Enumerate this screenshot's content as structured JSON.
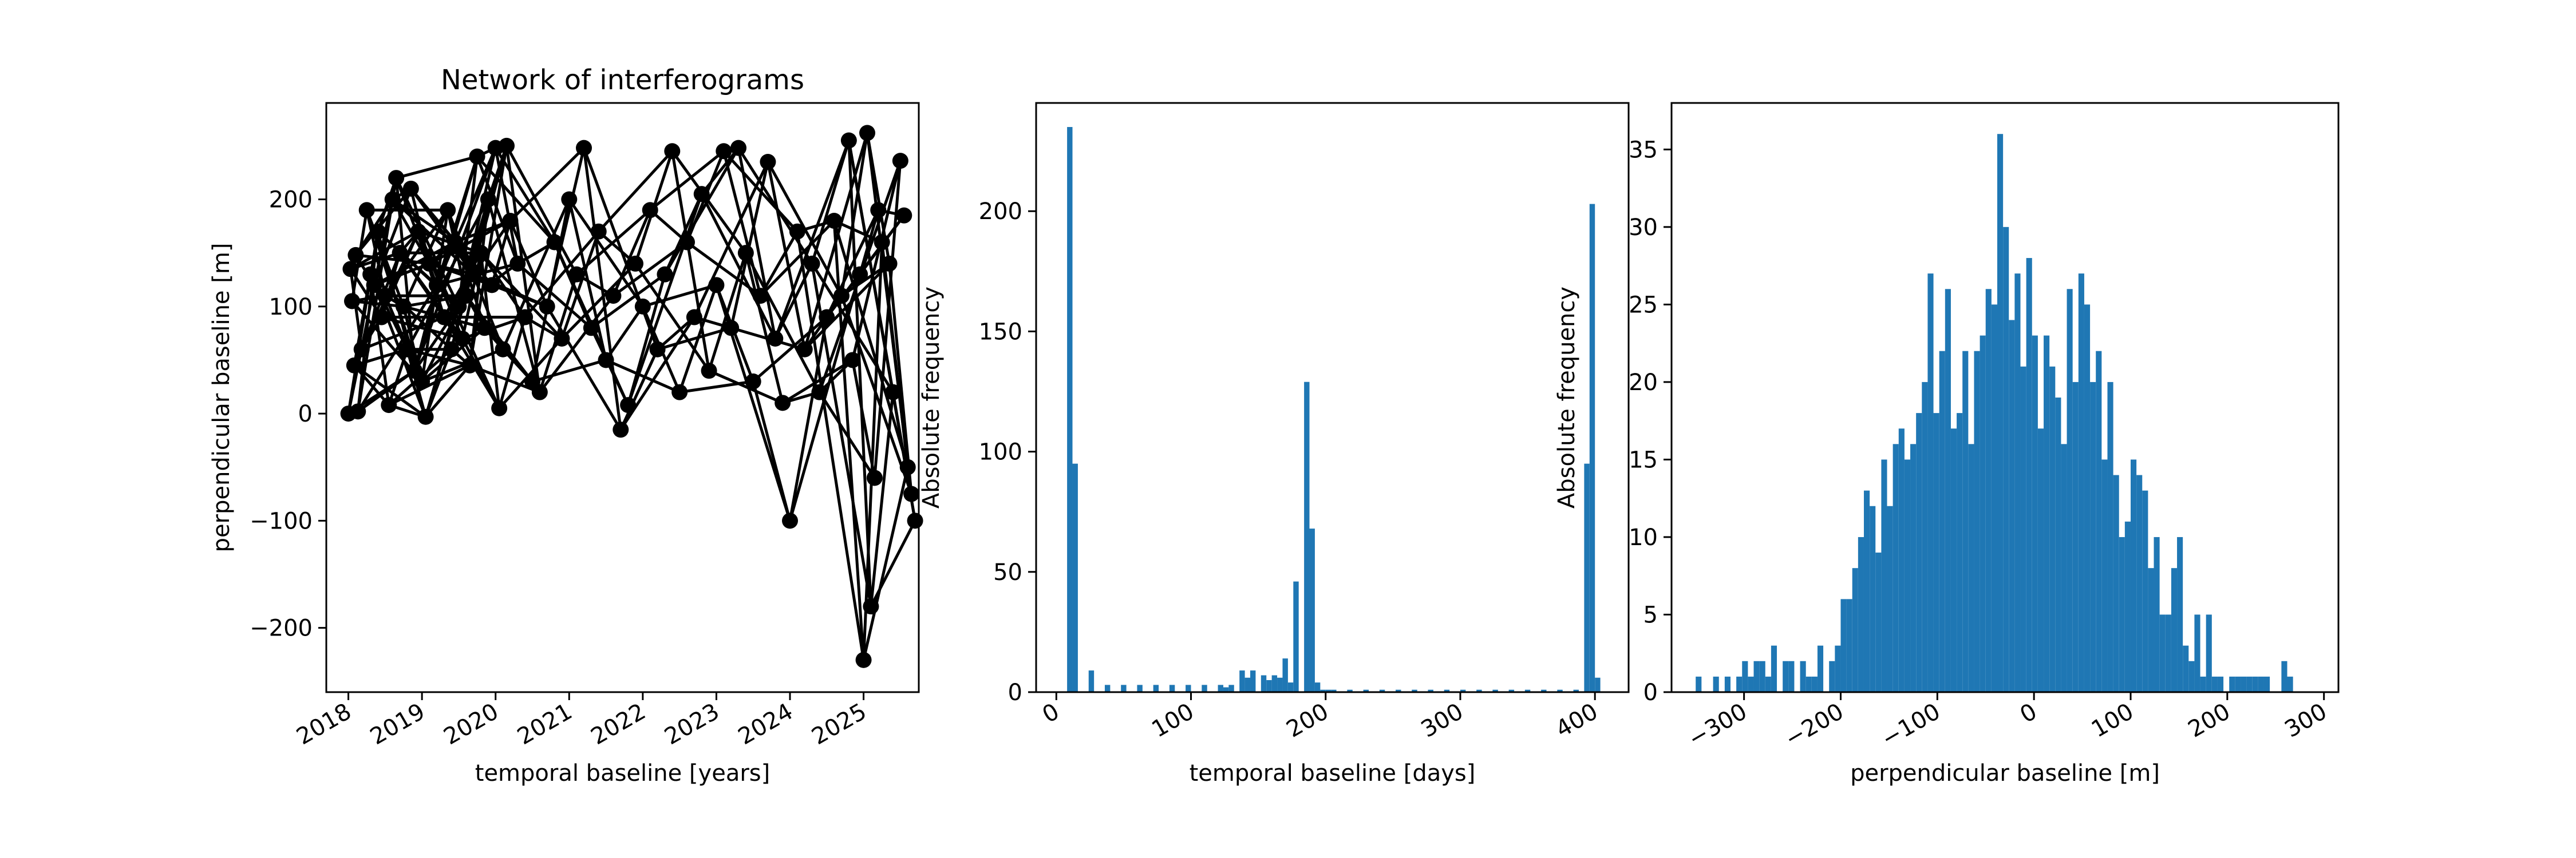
{
  "chart_data": [
    {
      "type": "scatter",
      "title": "Network of interferograms",
      "xlabel": "temporal baseline [years]",
      "ylabel": "perpendicular baseline [m]",
      "xlim": [
        2017.7,
        2025.75
      ],
      "ylim": [
        -260,
        290
      ],
      "x_ticks": [
        2018,
        2019,
        2020,
        2021,
        2022,
        2023,
        2024,
        2025
      ],
      "x_tick_labels": [
        "2018",
        "2019",
        "2020",
        "2021",
        "2022",
        "2023",
        "2024",
        "2025"
      ],
      "y_ticks": [
        -200,
        -100,
        0,
        100,
        200
      ],
      "y_tick_labels": [
        "−200",
        "−100",
        "0",
        "100",
        "200"
      ],
      "grid": false,
      "color": "#000000",
      "points": [
        [
          2018.0,
          0
        ],
        [
          2018.03,
          135
        ],
        [
          2018.05,
          105
        ],
        [
          2018.08,
          45
        ],
        [
          2018.1,
          148
        ],
        [
          2018.13,
          2
        ],
        [
          2018.18,
          60
        ],
        [
          2018.25,
          190
        ],
        [
          2018.3,
          130
        ],
        [
          2018.35,
          120
        ],
        [
          2018.4,
          170
        ],
        [
          2018.45,
          90
        ],
        [
          2018.5,
          110
        ],
        [
          2018.55,
          8
        ],
        [
          2018.6,
          200
        ],
        [
          2018.65,
          220
        ],
        [
          2018.7,
          150
        ],
        [
          2018.75,
          100
        ],
        [
          2018.8,
          60
        ],
        [
          2018.85,
          210
        ],
        [
          2018.9,
          40
        ],
        [
          2018.95,
          170
        ],
        [
          2019.0,
          30
        ],
        [
          2019.05,
          -3
        ],
        [
          2019.1,
          140
        ],
        [
          2019.2,
          120
        ],
        [
          2019.3,
          90
        ],
        [
          2019.35,
          190
        ],
        [
          2019.4,
          60
        ],
        [
          2019.45,
          160
        ],
        [
          2019.5,
          100
        ],
        [
          2019.55,
          70
        ],
        [
          2019.6,
          110
        ],
        [
          2019.65,
          45
        ],
        [
          2019.7,
          130
        ],
        [
          2019.75,
          240
        ],
        [
          2019.8,
          150
        ],
        [
          2019.85,
          80
        ],
        [
          2019.9,
          200
        ],
        [
          2019.95,
          120
        ],
        [
          2020.0,
          248
        ],
        [
          2020.05,
          5
        ],
        [
          2020.1,
          60
        ],
        [
          2020.15,
          250
        ],
        [
          2020.2,
          180
        ],
        [
          2020.3,
          140
        ],
        [
          2020.4,
          90
        ],
        [
          2020.5,
          30
        ],
        [
          2020.6,
          20
        ],
        [
          2020.7,
          100
        ],
        [
          2020.8,
          160
        ],
        [
          2020.9,
          70
        ],
        [
          2021.0,
          200
        ],
        [
          2021.1,
          130
        ],
        [
          2021.2,
          248
        ],
        [
          2021.3,
          80
        ],
        [
          2021.4,
          170
        ],
        [
          2021.5,
          50
        ],
        [
          2021.6,
          110
        ],
        [
          2021.7,
          -15
        ],
        [
          2021.8,
          8
        ],
        [
          2021.9,
          140
        ],
        [
          2022.0,
          100
        ],
        [
          2022.1,
          190
        ],
        [
          2022.2,
          60
        ],
        [
          2022.3,
          130
        ],
        [
          2022.4,
          245
        ],
        [
          2022.5,
          20
        ],
        [
          2022.6,
          160
        ],
        [
          2022.7,
          90
        ],
        [
          2022.8,
          205
        ],
        [
          2022.9,
          40
        ],
        [
          2023.0,
          120
        ],
        [
          2023.1,
          245
        ],
        [
          2023.2,
          80
        ],
        [
          2023.3,
          248
        ],
        [
          2023.4,
          150
        ],
        [
          2023.5,
          30
        ],
        [
          2023.6,
          110
        ],
        [
          2023.7,
          235
        ],
        [
          2023.8,
          70
        ],
        [
          2023.9,
          10
        ],
        [
          2024.0,
          -100
        ],
        [
          2024.1,
          170
        ],
        [
          2024.2,
          60
        ],
        [
          2024.3,
          140
        ],
        [
          2024.4,
          20
        ],
        [
          2024.5,
          90
        ],
        [
          2024.6,
          180
        ],
        [
          2024.7,
          110
        ],
        [
          2024.8,
          255
        ],
        [
          2024.85,
          50
        ],
        [
          2024.95,
          130
        ],
        [
          2025.0,
          -230
        ],
        [
          2025.05,
          262
        ],
        [
          2025.1,
          -180
        ],
        [
          2025.15,
          -60
        ],
        [
          2025.2,
          190
        ],
        [
          2025.25,
          160
        ],
        [
          2025.35,
          140
        ],
        [
          2025.4,
          20
        ],
        [
          2025.5,
          236
        ],
        [
          2025.55,
          185
        ],
        [
          2025.6,
          -50
        ],
        [
          2025.65,
          -75
        ],
        [
          2025.7,
          -100
        ]
      ]
    },
    {
      "type": "bar",
      "title": "",
      "xlabel": "temporal baseline [days]",
      "ylabel": "Absolute frequency",
      "xlim": [
        -15,
        425
      ],
      "ylim": [
        0,
        245
      ],
      "x_ticks": [
        0,
        100,
        200,
        300,
        400
      ],
      "x_tick_labels": [
        "0",
        "100",
        "200",
        "300",
        "400"
      ],
      "y_ticks": [
        0,
        50,
        100,
        150,
        200
      ],
      "y_tick_labels": [
        "0",
        "50",
        "100",
        "150",
        "200"
      ],
      "grid": false,
      "color": "#1f77b4",
      "bin_width": 4,
      "bins_start": [
        8,
        12,
        24,
        36,
        48,
        60,
        72,
        84,
        96,
        108,
        120,
        124,
        128,
        136,
        140,
        144,
        152,
        156,
        160,
        164,
        168,
        172,
        176,
        184,
        188,
        192,
        196,
        200,
        204,
        216,
        228,
        240,
        252,
        264,
        276,
        288,
        300,
        312,
        324,
        336,
        348,
        360,
        372,
        384,
        392,
        396,
        400
      ],
      "values": [
        235,
        95,
        9,
        3,
        3,
        3,
        3,
        3,
        3,
        3,
        3,
        2,
        3,
        9,
        6,
        9,
        7,
        5,
        7,
        6,
        14,
        4,
        46,
        129,
        68,
        4,
        1,
        1,
        1,
        1,
        1,
        1,
        1,
        1,
        1,
        1,
        1,
        1,
        1,
        1,
        1,
        1,
        1,
        1,
        95,
        203,
        6
      ]
    },
    {
      "type": "bar",
      "title": "",
      "xlabel": "perpendicular baseline [m]",
      "ylabel": "Absolute frequency",
      "xlim": [
        -375,
        315
      ],
      "ylim": [
        0,
        38
      ],
      "x_ticks": [
        -300,
        -200,
        -100,
        0,
        100,
        200,
        300
      ],
      "x_tick_labels": [
        "−300",
        "−200",
        "−100",
        "0",
        "100",
        "200",
        "300"
      ],
      "y_ticks": [
        0,
        5,
        10,
        15,
        20,
        25,
        30,
        35
      ],
      "y_tick_labels": [
        "0",
        "5",
        "10",
        "15",
        "20",
        "25",
        "30",
        "35"
      ],
      "grid": false,
      "color": "#1f77b4",
      "bin_start": -350,
      "bin_width": 6,
      "values": [
        1,
        0,
        0,
        1,
        0,
        1,
        0,
        1,
        2,
        1,
        2,
        2,
        1,
        3,
        0,
        2,
        2,
        0,
        2,
        1,
        1,
        3,
        0,
        2,
        3,
        6,
        6,
        8,
        10,
        13,
        12,
        9,
        15,
        12,
        16,
        17,
        15,
        16,
        18,
        20,
        27,
        18,
        22,
        26,
        17,
        18,
        22,
        16,
        22,
        23,
        26,
        25,
        36,
        30,
        24,
        27,
        21,
        28,
        23,
        17,
        23,
        21,
        19,
        16,
        26,
        20,
        27,
        25,
        20,
        22,
        15,
        20,
        14,
        10,
        11,
        15,
        14,
        13,
        8,
        10,
        5,
        5,
        8,
        10,
        3,
        2,
        5,
        1,
        5,
        1,
        1,
        0,
        1,
        1,
        1,
        1,
        1,
        1,
        1,
        0,
        0,
        2,
        1
      ]
    }
  ]
}
